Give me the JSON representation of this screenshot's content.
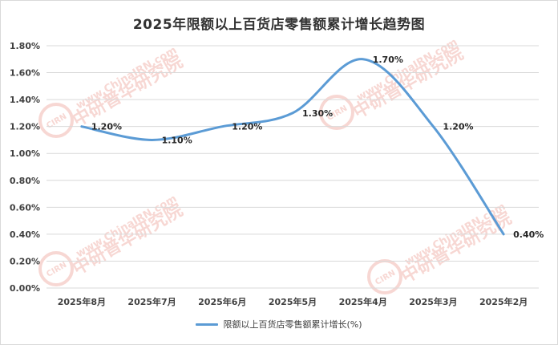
{
  "chart_data": {
    "type": "line",
    "title": "2025年限额以上百货店零售额累计增长趋势图",
    "categories": [
      "2025年8月",
      "2025年7月",
      "2025年6月",
      "2025年5月",
      "2025年4月",
      "2025年3月",
      "2025年2月"
    ],
    "series": [
      {
        "name": "限额以上百货店零售额累计增长(%)",
        "values": [
          1.2,
          1.1,
          1.2,
          1.3,
          1.7,
          1.2,
          0.4
        ],
        "data_labels": [
          "1.20%",
          "1.10%",
          "1.20%",
          "1.30%",
          "1.70%",
          "1.20%",
          "0.40%"
        ],
        "color": "#5b9bd5",
        "smooth": true
      }
    ],
    "y_ticks": [
      "0.00%",
      "0.20%",
      "0.40%",
      "0.60%",
      "0.80%",
      "1.00%",
      "1.20%",
      "1.40%",
      "1.60%",
      "1.80%"
    ],
    "ylim": [
      0,
      1.8
    ],
    "ystep": 0.2,
    "xlabel": "",
    "ylabel": "",
    "grid": true,
    "legend": "bottom"
  },
  "watermark": {
    "text_lines": [
      "www.ChinaIRN.com",
      "中研普华研究院"
    ],
    "logo_text": "CIRN",
    "color": "#f2b8b0"
  }
}
